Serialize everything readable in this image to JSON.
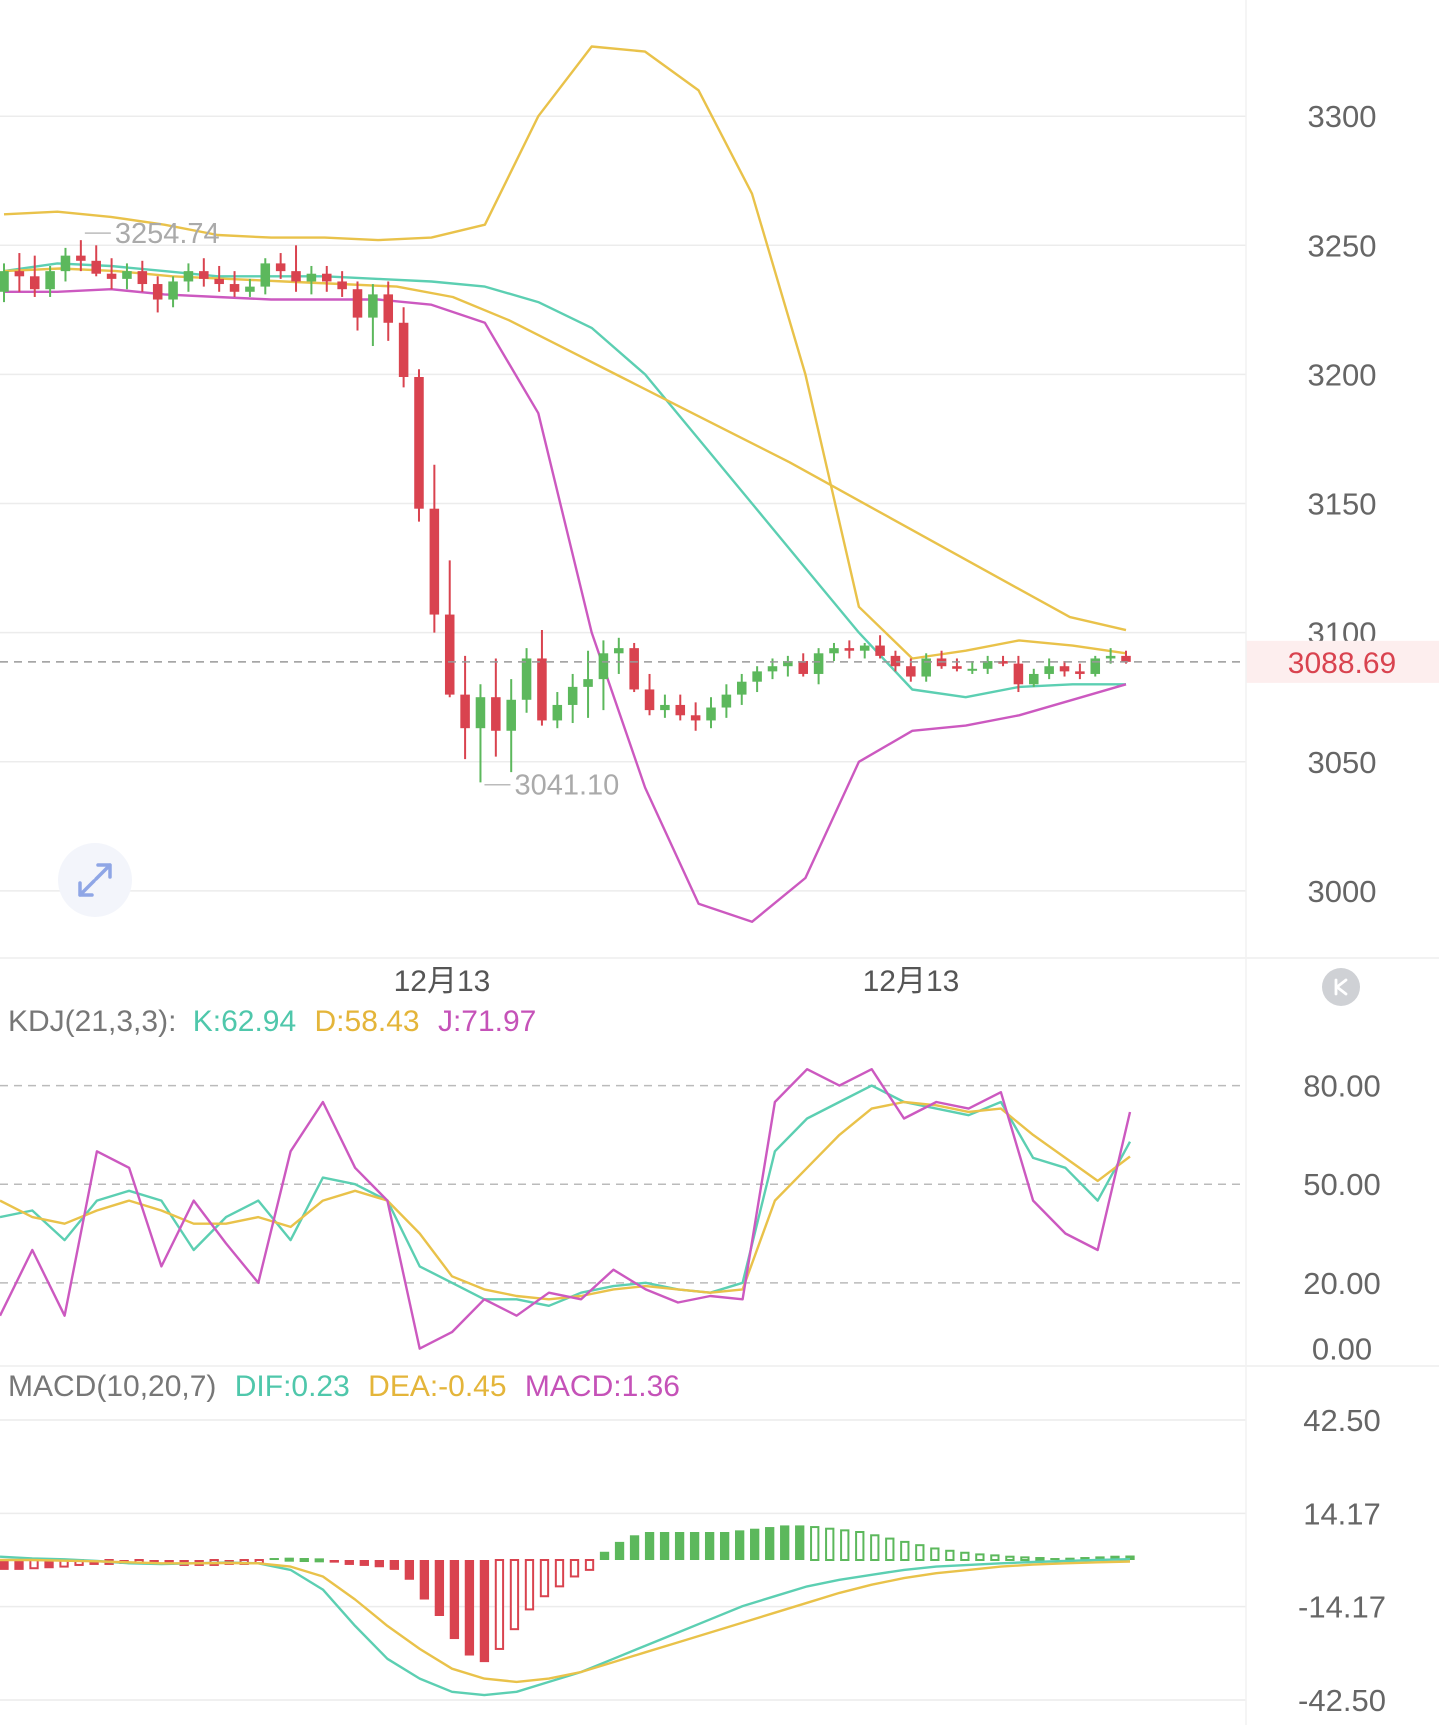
{
  "colors": {
    "up": "#5cb85c",
    "down": "#d9434f",
    "mid": "#5ccfb2",
    "upper": "#e9c24a",
    "lower": "#cc59c0",
    "ma_long": "#e9c24a",
    "k": "#5ccfb2",
    "d": "#e9c24a",
    "j": "#cc59c0",
    "price_tag": "#d9434f",
    "grid": "#ececec",
    "axis_text": "#666666"
  },
  "chart_data": [
    {
      "type": "candlestick",
      "title": "",
      "y_ticks": [
        "3300",
        "3250",
        "3200",
        "3150",
        "3100",
        "3050",
        "3000"
      ],
      "y_tick_values": [
        3300,
        3250,
        3200,
        3150,
        3100,
        3050,
        3000
      ],
      "ylim": [
        2974,
        3345
      ],
      "x_ticks": [
        "12月13",
        "12月13"
      ],
      "current_price": "3088.69",
      "current_price_value": 3088.69,
      "high_label": "3254.74",
      "high_value": 3254.74,
      "low_label": "3041.10",
      "low_value": 3041.1,
      "candles_ohlc": [
        [
          3232,
          3243,
          3228,
          3240
        ],
        [
          3240,
          3247,
          3232,
          3238
        ],
        [
          3238,
          3246,
          3230,
          3233
        ],
        [
          3233,
          3242,
          3230,
          3240
        ],
        [
          3240,
          3249,
          3236,
          3246
        ],
        [
          3246,
          3252,
          3240,
          3244
        ],
        [
          3244,
          3250,
          3238,
          3239
        ],
        [
          3239,
          3245,
          3233,
          3237
        ],
        [
          3237,
          3243,
          3233,
          3240
        ],
        [
          3240,
          3244,
          3232,
          3235
        ],
        [
          3235,
          3238,
          3224,
          3229
        ],
        [
          3229,
          3238,
          3226,
          3236
        ],
        [
          3236,
          3243,
          3232,
          3240
        ],
        [
          3240,
          3245,
          3234,
          3237
        ],
        [
          3237,
          3242,
          3232,
          3235
        ],
        [
          3235,
          3240,
          3230,
          3232
        ],
        [
          3232,
          3237,
          3230,
          3234
        ],
        [
          3234,
          3245,
          3231,
          3243
        ],
        [
          3243,
          3247,
          3237,
          3240
        ],
        [
          3240,
          3250,
          3232,
          3236
        ],
        [
          3236,
          3242,
          3231,
          3239
        ],
        [
          3239,
          3242,
          3232,
          3236
        ],
        [
          3236,
          3240,
          3230,
          3233
        ],
        [
          3233,
          3236,
          3217,
          3222
        ],
        [
          3222,
          3235,
          3211,
          3231
        ],
        [
          3231,
          3236,
          3213,
          3220
        ],
        [
          3220,
          3226,
          3195,
          3199
        ],
        [
          3199,
          3202,
          3143,
          3148
        ],
        [
          3148,
          3165,
          3100,
          3107
        ],
        [
          3107,
          3128,
          3075,
          3076
        ],
        [
          3076,
          3091,
          3051,
          3063
        ],
        [
          3063,
          3080,
          3042,
          3075
        ],
        [
          3075,
          3090,
          3052,
          3062
        ],
        [
          3062,
          3082,
          3046,
          3074
        ],
        [
          3074,
          3094,
          3069,
          3090
        ],
        [
          3090,
          3101,
          3064,
          3066
        ],
        [
          3066,
          3077,
          3063,
          3072
        ],
        [
          3072,
          3084,
          3065,
          3079
        ],
        [
          3079,
          3093,
          3067,
          3082
        ],
        [
          3082,
          3097,
          3070,
          3092
        ],
        [
          3092,
          3098,
          3084,
          3094
        ],
        [
          3094,
          3096,
          3077,
          3078
        ],
        [
          3078,
          3084,
          3068,
          3070
        ],
        [
          3070,
          3076,
          3067,
          3072
        ],
        [
          3072,
          3076,
          3066,
          3068
        ],
        [
          3068,
          3073,
          3062,
          3066
        ],
        [
          3066,
          3075,
          3063,
          3071
        ],
        [
          3071,
          3080,
          3067,
          3076
        ],
        [
          3076,
          3084,
          3072,
          3081
        ],
        [
          3081,
          3087,
          3077,
          3085
        ],
        [
          3085,
          3090,
          3082,
          3087
        ],
        [
          3087,
          3091,
          3083,
          3089
        ],
        [
          3089,
          3092,
          3083,
          3084
        ],
        [
          3084,
          3094,
          3080,
          3092
        ],
        [
          3092,
          3096,
          3089,
          3094
        ],
        [
          3094,
          3097,
          3090,
          3093
        ],
        [
          3093,
          3096,
          3090,
          3095
        ],
        [
          3095,
          3099,
          3090,
          3091
        ],
        [
          3091,
          3093,
          3085,
          3087
        ],
        [
          3087,
          3090,
          3081,
          3083
        ],
        [
          3083,
          3092,
          3081,
          3090
        ],
        [
          3090,
          3093,
          3086,
          3087
        ],
        [
          3087,
          3090,
          3085,
          3086
        ],
        [
          3086,
          3089,
          3084,
          3086
        ],
        [
          3086,
          3091,
          3084,
          3089
        ],
        [
          3089,
          3091,
          3087,
          3088
        ],
        [
          3088,
          3091,
          3077,
          3080
        ],
        [
          3080,
          3086,
          3079,
          3084
        ],
        [
          3084,
          3090,
          3082,
          3087
        ],
        [
          3087,
          3089,
          3083,
          3085
        ],
        [
          3085,
          3088,
          3082,
          3084
        ],
        [
          3084,
          3091,
          3083,
          3090
        ],
        [
          3090,
          3094,
          3088,
          3091
        ],
        [
          3091,
          3093,
          3088,
          3088.69
        ]
      ],
      "series": [
        {
          "role": "mid",
          "values": [
            3240,
            3243,
            3242,
            3240,
            3238,
            3238,
            3238,
            3237,
            3236,
            3234,
            3228,
            3218,
            3200,
            3175,
            3150,
            3125,
            3100,
            3078,
            3075,
            3079,
            3080,
            3080
          ]
        },
        {
          "role": "upper",
          "values": [
            3262,
            3263,
            3261,
            3258,
            3254,
            3253,
            3253,
            3252,
            3253,
            3258,
            3300,
            3327,
            3325,
            3310,
            3270,
            3200,
            3110,
            3090,
            3093,
            3097,
            3095,
            3092
          ]
        },
        {
          "role": "lower",
          "values": [
            3232,
            3232,
            3233,
            3231,
            3230,
            3229,
            3229,
            3229,
            3227,
            3220,
            3185,
            3100,
            3040,
            2995,
            2988,
            3005,
            3050,
            3062,
            3064,
            3068,
            3074,
            3080
          ]
        },
        {
          "role": "ma_long",
          "values": [
            3240,
            3241,
            3240,
            3238,
            3237,
            3236,
            3235,
            3234,
            3230,
            3221,
            3210,
            3199,
            3188,
            3177,
            3166,
            3154,
            3142,
            3130,
            3118,
            3106,
            3101
          ]
        }
      ]
    },
    {
      "type": "line",
      "title": "KDJ(21,3,3):",
      "k_label": "K:62.94",
      "d_label": "D:58.43",
      "j_label": "J:71.97",
      "y_ticks": [
        "80.00",
        "50.00",
        "20.00",
        "0.00"
      ],
      "y_tick_values": [
        80,
        50,
        20,
        0
      ],
      "ylim": [
        -5,
        103
      ],
      "series": [
        {
          "name": "K",
          "values": [
            40,
            42,
            33,
            45,
            48,
            45,
            30,
            40,
            45,
            33,
            52,
            50,
            45,
            25,
            20,
            15,
            15,
            13,
            17,
            19,
            20,
            18,
            17,
            20,
            60,
            70,
            75,
            80,
            75,
            73,
            71,
            75,
            58,
            55,
            45,
            62.94
          ]
        },
        {
          "name": "D",
          "values": [
            45,
            40,
            38,
            42,
            45,
            42,
            38,
            38,
            40,
            37,
            45,
            48,
            45,
            35,
            22,
            18,
            16,
            15,
            16,
            18,
            19,
            18,
            17,
            18,
            45,
            55,
            65,
            73,
            75,
            74,
            72,
            73,
            65,
            58,
            51,
            58.43
          ]
        },
        {
          "name": "J",
          "values": [
            10,
            30,
            10,
            60,
            55,
            25,
            45,
            32,
            20,
            60,
            75,
            55,
            45,
            0,
            5,
            15,
            10,
            17,
            15,
            24,
            18,
            14,
            16,
            15,
            75,
            85,
            80,
            85,
            70,
            75,
            73,
            78,
            45,
            35,
            30,
            71.97
          ]
        }
      ]
    },
    {
      "type": "bar",
      "title": "MACD(10,20,7)",
      "dif_label": "DIF:0.23",
      "dea_label": "DEA:-0.45",
      "macd_label": "MACD:1.36",
      "y_ticks": [
        "42.50",
        "14.17",
        "-14.17",
        "-42.50"
      ],
      "y_tick_values": [
        42.5,
        14.17,
        -14.17,
        -42.5
      ],
      "ylim": [
        -42.5,
        42.5
      ],
      "histogram": [
        -3,
        -3,
        -2.5,
        -2.5,
        -2,
        -1.5,
        -1.5,
        -1.2,
        -1.2,
        -1,
        -1,
        -1.5,
        -1.8,
        -1.8,
        -1.5,
        -1.5,
        -1.2,
        -1,
        0.6,
        0.4,
        0.3,
        0.2,
        -0.8,
        -1.5,
        -1.8,
        -2.2,
        -3,
        -6,
        -12,
        -17,
        -24,
        -29,
        -31,
        -27,
        -21,
        -15,
        -11,
        -8,
        -5,
        -3,
        2.5,
        5.5,
        7.5,
        8.5,
        8.5,
        8.5,
        8.5,
        8.5,
        8.5,
        9,
        9.5,
        10,
        10.5,
        10.5,
        10,
        9.5,
        9,
        8.5,
        7.5,
        6.5,
        5.5,
        4.5,
        3.5,
        2.8,
        2.2,
        1.7,
        1.4,
        1,
        0.8,
        0.6,
        0.6,
        0.7,
        0.9,
        1.1,
        1.3,
        1.36
      ],
      "series": [
        {
          "name": "DIF",
          "values": [
            1,
            0.5,
            0.2,
            -0.3,
            -1,
            -1.2,
            -1,
            -0.8,
            -1,
            -3,
            -9,
            -20,
            -30,
            -36,
            -40,
            -41,
            -40,
            -37,
            -34,
            -30,
            -26,
            -22,
            -18,
            -14,
            -11,
            -8,
            -6,
            -4.5,
            -3,
            -2,
            -1.5,
            -1,
            -0.6,
            -0.3,
            0,
            0.23
          ]
        },
        {
          "name": "DEA",
          "values": [
            0,
            0,
            -0.2,
            -0.4,
            -0.7,
            -1,
            -1,
            -0.9,
            -1,
            -2,
            -5,
            -12,
            -20,
            -27,
            -33,
            -36,
            -37,
            -36,
            -34,
            -31,
            -28,
            -25,
            -22,
            -19,
            -16,
            -13,
            -10,
            -7.5,
            -5.5,
            -4,
            -3,
            -2,
            -1.4,
            -1,
            -0.7,
            -0.45
          ]
        }
      ]
    }
  ]
}
